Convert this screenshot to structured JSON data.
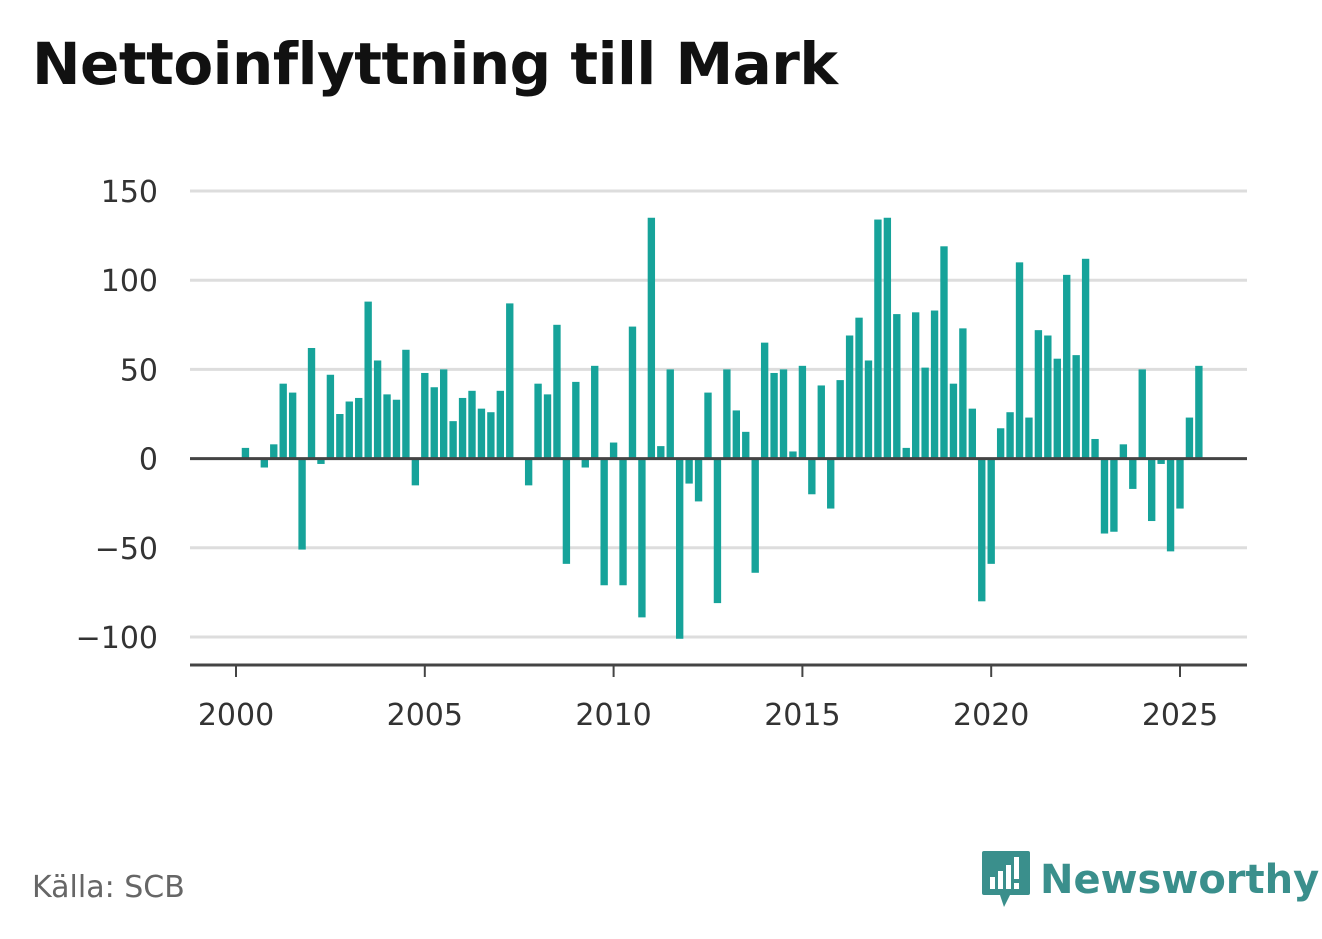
{
  "title": "Nettoinflyttning till Mark",
  "source": "Källa: SCB",
  "brand": {
    "name": "Newsworthy",
    "icon": "newsworthy-logo-icon",
    "color": "#3a8f8c"
  },
  "colors": {
    "bar": "#16a39a",
    "grid": "#dddddd",
    "zero_line": "#444444",
    "axis": "#444444"
  },
  "chart_data": {
    "type": "bar",
    "title": "Nettoinflyttning till Mark",
    "xlabel": "",
    "ylabel": "",
    "ylim": [
      -115,
      150
    ],
    "yticks": [
      150,
      100,
      50,
      0,
      -50,
      -100
    ],
    "ytick_labels": [
      "150",
      "100",
      "50",
      "0",
      "−50",
      "−100"
    ],
    "xlim": [
      1999.5,
      2026.2
    ],
    "xticks": [
      2000,
      2005,
      2010,
      2015,
      2020,
      2025
    ],
    "xtick_labels": [
      "2000",
      "2005",
      "2010",
      "2015",
      "2020",
      "2025"
    ],
    "grid": true,
    "series": [
      {
        "frequency": "quarterly",
        "start": "2000-Q1",
        "values": [
          0,
          6,
          0,
          -5,
          8,
          42,
          37,
          -51,
          62,
          -3,
          47,
          25,
          32,
          34,
          88,
          55,
          36,
          33,
          61,
          -15,
          48,
          40,
          50,
          21,
          34,
          38,
          28,
          26,
          38,
          87,
          0,
          -15,
          42,
          36,
          75,
          -59,
          43,
          -5,
          52,
          -71,
          9,
          -71,
          74,
          -89,
          135,
          7,
          50,
          -101,
          -14,
          -24,
          37,
          -81,
          50,
          27,
          15,
          -64,
          65,
          48,
          50,
          4,
          52,
          -20,
          41,
          -28,
          44,
          69,
          79,
          55,
          134,
          135,
          81,
          6,
          82,
          51,
          83,
          119,
          42,
          73,
          28,
          -80,
          -59,
          17,
          26,
          110,
          23,
          72,
          69,
          56,
          103,
          58,
          112,
          11,
          -42,
          -41,
          8,
          -17,
          50,
          -35,
          -3,
          -52,
          -28,
          23,
          52
        ]
      }
    ]
  }
}
